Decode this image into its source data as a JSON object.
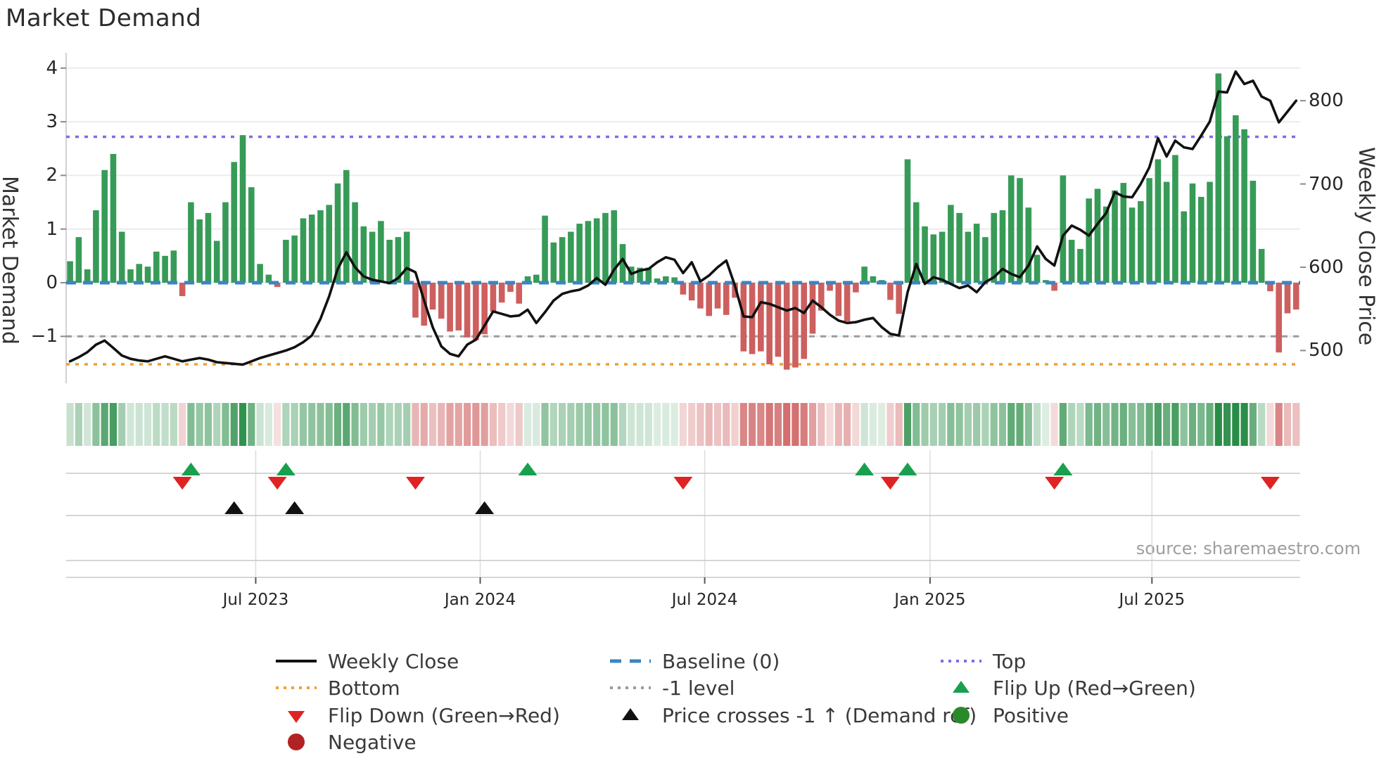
{
  "title": "Market Demand",
  "axes": {
    "ylabel_left": "Market Demand",
    "ylabel_right": "Weekly Close Price",
    "left_ticks": [
      "4",
      "3",
      "2",
      "1",
      "0",
      "−1"
    ],
    "left_tick_values": [
      4,
      3,
      2,
      1,
      0,
      -1
    ],
    "right_ticks": [
      "800",
      "700",
      "600",
      "500"
    ],
    "right_tick_values": [
      800,
      700,
      600,
      500
    ],
    "x_ticks": [
      "Jul 2023",
      "Jan 2024",
      "Jul 2024",
      "Jan 2025",
      "Jul 2025"
    ],
    "x_tick_weeks": [
      22.5,
      48.5,
      74.5,
      100.6,
      126.3
    ]
  },
  "source": "source: sharemaestro.com",
  "colors": {
    "bar_positive": "#379b57",
    "bar_negative": "#cd5f5f",
    "price_line": "#111111",
    "baseline_blue": "#3a85c0",
    "top_purple": "#7b6fe8",
    "bottom_orange": "#f59e2e",
    "minus1_gray": "#9b9b9b",
    "flip_up_green": "#18a04e",
    "flip_down_red": "#df2322",
    "cross_black": "#111111",
    "negative_dot": "#b22222",
    "positive_dot": "#2a8a2a",
    "grid": "#ececf0",
    "subline": "#c9c9c9"
  },
  "legend": {
    "columns": [
      [
        {
          "swatch": "line-solid-black",
          "label": "Weekly Close"
        },
        {
          "swatch": "dots-orange",
          "label": "Bottom"
        },
        {
          "swatch": "tri-down-red",
          "label": "Flip Down (Green→Red)"
        },
        {
          "swatch": "dot-darkred",
          "label": "Negative"
        }
      ],
      [
        {
          "swatch": "dash-blue",
          "label": "Baseline (0)"
        },
        {
          "swatch": "dots-gray",
          "label": "-1 level"
        },
        {
          "swatch": "tri-up-black",
          "label": "Price crosses -1 ↑ (Demand ref)"
        }
      ],
      [
        {
          "swatch": "dots-purple",
          "label": "Top"
        },
        {
          "swatch": "tri-up-green",
          "label": "Flip Up (Red→Green)"
        },
        {
          "swatch": "dot-green",
          "label": "Positive"
        }
      ]
    ]
  },
  "chart_data": {
    "type": "bar",
    "series_info": "Weekly market-demand bars (left axis, range -1.75..4.25) with weekly close price line (right axis 500..800); 143 weekly points Feb 2023 - Oct 2025",
    "levels": {
      "baseline": 0,
      "top": 2.72,
      "bottom": -1.52,
      "minus1": -1
    },
    "ylim_left": [
      -1.75,
      4.25
    ],
    "ylim_right": [
      470,
      860
    ],
    "demand": [
      0.4,
      0.85,
      0.25,
      1.35,
      2.1,
      2.4,
      0.95,
      0.25,
      0.35,
      0.3,
      0.58,
      0.5,
      0.6,
      -0.25,
      1.5,
      1.18,
      1.3,
      0.78,
      1.5,
      2.25,
      2.75,
      1.78,
      0.35,
      0.15,
      -0.08,
      0.8,
      0.88,
      1.2,
      1.27,
      1.35,
      1.45,
      1.85,
      2.1,
      1.5,
      1.05,
      0.95,
      1.15,
      0.8,
      0.85,
      0.95,
      -0.65,
      -0.8,
      -0.5,
      -0.67,
      -0.91,
      -0.89,
      -1.02,
      -1.07,
      -0.96,
      -0.54,
      -0.37,
      -0.17,
      -0.39,
      0.12,
      0.15,
      1.25,
      0.75,
      0.85,
      0.95,
      1.1,
      1.15,
      1.2,
      1.3,
      1.35,
      0.72,
      0.3,
      0.28,
      0.28,
      0.08,
      0.12,
      0.1,
      -0.22,
      -0.33,
      -0.48,
      -0.62,
      -0.48,
      -0.6,
      -0.28,
      -1.28,
      -1.33,
      -1.28,
      -1.52,
      -1.38,
      -1.62,
      -1.58,
      -1.42,
      -0.95,
      -0.52,
      -0.15,
      -0.62,
      -0.72,
      -0.18,
      0.3,
      0.12,
      0.05,
      -0.32,
      -0.58,
      2.3,
      1.5,
      1.05,
      0.9,
      0.95,
      1.45,
      1.3,
      0.95,
      1.1,
      0.85,
      1.3,
      1.35,
      2.0,
      1.95,
      1.4,
      0.52,
      0.05,
      -0.15,
      2.0,
      0.8,
      0.63,
      1.57,
      1.75,
      1.42,
      1.72,
      1.86,
      1.4,
      1.52,
      1.95,
      2.3,
      1.88,
      2.38,
      1.33,
      1.85,
      1.6,
      1.88,
      3.9,
      2.73,
      3.12,
      2.86,
      1.9,
      0.63,
      -0.16,
      -1.3,
      -0.57,
      -0.5
    ],
    "price": [
      487,
      492,
      498,
      507,
      512,
      503,
      494,
      490,
      488,
      487,
      490,
      493,
      490,
      487,
      489,
      491,
      489,
      486,
      485,
      484,
      483,
      487,
      491,
      494,
      497,
      500,
      504,
      510,
      518,
      538,
      565,
      598,
      618,
      600,
      589,
      585,
      583,
      581,
      587,
      599,
      594,
      560,
      528,
      505,
      496,
      493,
      507,
      513,
      530,
      547,
      544,
      541,
      542,
      549,
      533,
      546,
      560,
      568,
      571,
      573,
      578,
      587,
      579,
      597,
      610,
      592,
      596,
      598,
      606,
      612,
      609,
      593,
      606,
      583,
      590,
      600,
      608,
      578,
      541,
      540,
      558,
      556,
      552,
      548,
      551,
      545,
      560,
      552,
      543,
      536,
      533,
      534,
      537,
      539,
      528,
      520,
      518,
      570,
      604,
      580,
      588,
      585,
      580,
      575,
      578,
      570,
      582,
      588,
      598,
      592,
      588,
      602,
      625,
      610,
      602,
      638,
      650,
      645,
      638,
      652,
      665,
      690,
      685,
      684,
      700,
      720,
      755,
      733,
      752,
      744,
      742,
      758,
      775,
      811,
      810,
      835,
      820,
      824,
      805,
      800,
      774,
      787,
      800
    ],
    "flip_up_weeks": [
      15,
      26,
      54,
      93,
      98,
      116
    ],
    "flip_down_weeks": [
      14,
      25,
      41,
      72,
      96,
      115,
      140
    ],
    "price_cross_weeks": [
      20,
      27,
      49
    ],
    "heatmap": "cell color derived from weekly demand value (green shade positive, red shade negative)"
  }
}
